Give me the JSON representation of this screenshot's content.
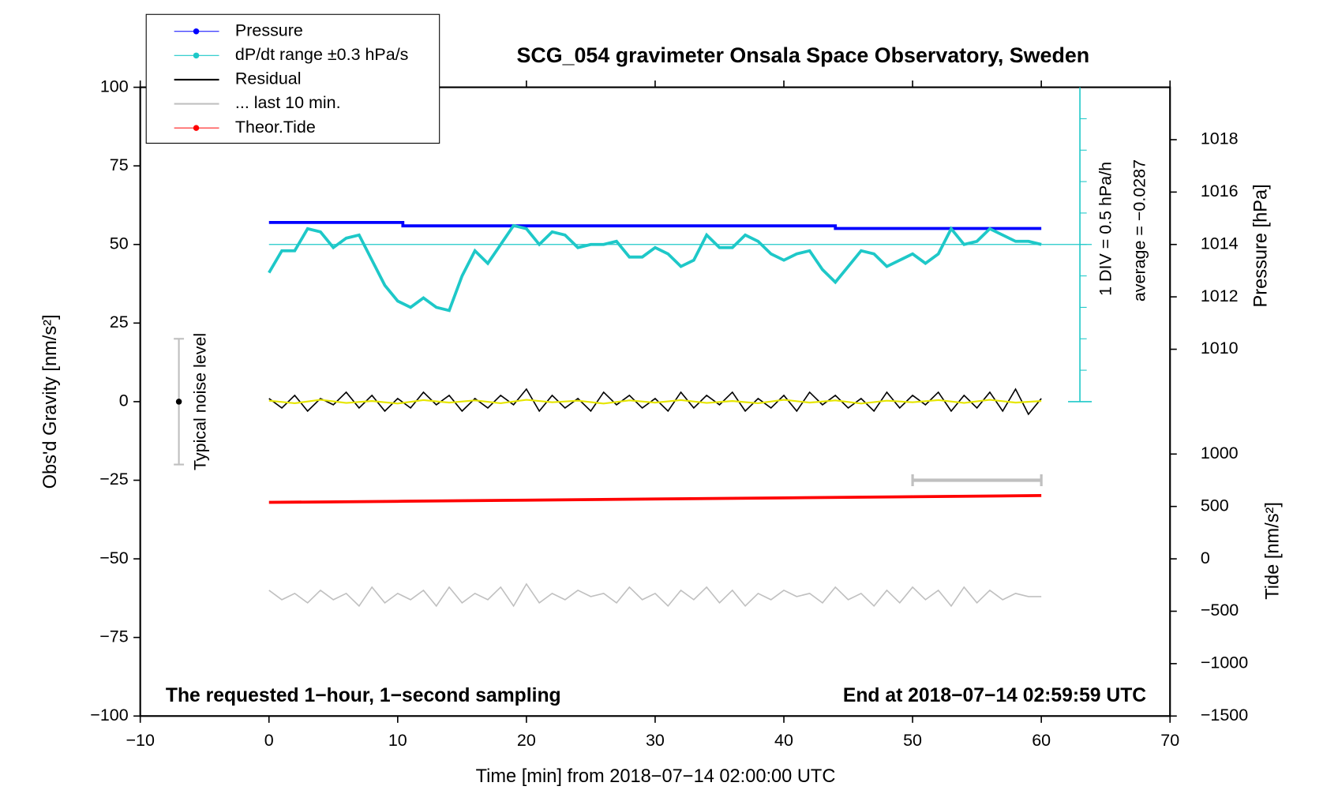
{
  "chart_data": {
    "type": "line",
    "title": "SCG_054 gravimeter Onsala Space Observatory, Sweden",
    "x_label": "Time [min] from 2018−07−14 02:00:00 UTC",
    "y_label": "Obs'd Gravity [nm/s²]",
    "y2_label": "Pressure [hPa]",
    "y3_label": "Tide [nm/s²]",
    "annotations": [
      "The requested 1−hour, 1−second sampling",
      "End at 2018−07−14 02:59:59 UTC",
      "Typical noise level",
      "1 DIV = 0.5 hPa/h",
      "average = −0.0287"
    ],
    "xlim": [
      -10,
      70
    ],
    "xticks": [
      {
        "value": -10,
        "label": "−10"
      },
      0,
      10,
      20,
      30,
      40,
      50,
      60,
      70
    ],
    "ylim": [
      -100,
      100
    ],
    "yticks": [
      {
        "value": -100,
        "label": "−100"
      },
      {
        "value": -75,
        "label": "−75"
      },
      {
        "value": -50,
        "label": "−50"
      },
      {
        "value": -25,
        "label": "−25"
      },
      0,
      25,
      50,
      75,
      100
    ],
    "y2lim": [
      996,
      1020
    ],
    "y2ticks": [
      1010,
      1012,
      1014,
      1016,
      1018
    ],
    "y3lim": [
      -1500,
      4500
    ],
    "y3ticks": [
      {
        "value": -1500,
        "label": "−1500"
      },
      {
        "value": -1000,
        "label": "−1000"
      },
      {
        "value": -500,
        "label": "−500"
      },
      0,
      500,
      1000
    ],
    "series": [
      {
        "name": "Pressure",
        "color": "#0000ff",
        "axis": "y2",
        "marker": true,
        "x": [
          0,
          10.4,
          10.4,
          44,
          44,
          60
        ],
        "values": [
          1014.84,
          1014.84,
          1014.71,
          1014.71,
          1014.61,
          1014.61
        ]
      },
      {
        "name": "dP/dt range ±0.3 hPa/s",
        "color": "#1ec8c8",
        "marker": true,
        "x": [
          0,
          1,
          2,
          3,
          4,
          5,
          6,
          7,
          8,
          9,
          10,
          11,
          12,
          13,
          14,
          15,
          16,
          17,
          18,
          19,
          20,
          21,
          22,
          23,
          24,
          25,
          26,
          27,
          28,
          29,
          30,
          31,
          32,
          33,
          34,
          35,
          36,
          37,
          38,
          39,
          40,
          41,
          42,
          43,
          44,
          45,
          46,
          47,
          48,
          49,
          50,
          51,
          52,
          53,
          54,
          55,
          56,
          57,
          58,
          59,
          60
        ],
        "values": [
          41,
          48,
          48,
          55,
          54,
          49,
          52,
          53,
          45,
          37,
          32,
          30,
          33,
          30,
          29,
          40,
          48,
          44,
          50,
          56,
          55,
          50,
          54,
          53,
          49,
          50,
          50,
          51,
          46,
          46,
          49,
          47,
          43,
          45,
          53,
          49,
          49,
          53,
          51,
          47,
          45,
          47,
          48,
          42,
          38,
          43,
          48,
          47,
          43,
          45,
          47,
          44,
          47,
          55,
          50,
          51,
          55,
          53,
          51,
          51,
          50
        ]
      },
      {
        "name": "Residual",
        "color": "#000000",
        "x": [
          0,
          1,
          2,
          3,
          4,
          5,
          6,
          7,
          8,
          9,
          10,
          11,
          12,
          13,
          14,
          15,
          16,
          17,
          18,
          19,
          20,
          21,
          22,
          23,
          24,
          25,
          26,
          27,
          28,
          29,
          30,
          31,
          32,
          33,
          34,
          35,
          36,
          37,
          38,
          39,
          40,
          41,
          42,
          43,
          44,
          45,
          46,
          47,
          48,
          49,
          50,
          51,
          52,
          53,
          54,
          55,
          56,
          57,
          58,
          59,
          60
        ],
        "values": [
          1,
          -2,
          2,
          -3,
          1,
          -1,
          3,
          -2,
          2,
          -3,
          1,
          -2,
          3,
          -1,
          2,
          -3,
          1,
          -2,
          2,
          -1,
          4,
          -3,
          2,
          -2,
          1,
          -3,
          3,
          -1,
          2,
          -2,
          1,
          -3,
          3,
          -2,
          2,
          -1,
          3,
          -3,
          1,
          -2,
          2,
          -3,
          3,
          -1,
          2,
          -2,
          1,
          -3,
          3,
          -2,
          2,
          -1,
          3,
          -3,
          2,
          -2,
          3,
          -3,
          4,
          -4,
          1
        ]
      },
      {
        "name": "... last 10 min.",
        "color": "#c0c0c0",
        "x": [
          0,
          1,
          2,
          3,
          4,
          5,
          6,
          7,
          8,
          9,
          10,
          11,
          12,
          13,
          14,
          15,
          16,
          17,
          18,
          19,
          20,
          21,
          22,
          23,
          24,
          25,
          26,
          27,
          28,
          29,
          30,
          31,
          32,
          33,
          34,
          35,
          36,
          37,
          38,
          39,
          40,
          41,
          42,
          43,
          44,
          45,
          46,
          47,
          48,
          49,
          50,
          51,
          52,
          53,
          54,
          55,
          56,
          57,
          58,
          59,
          60
        ],
        "values": [
          -60,
          -63,
          -61,
          -64,
          -60,
          -63,
          -61,
          -65,
          -59,
          -64,
          -61,
          -63,
          -60,
          -65,
          -59,
          -64,
          -61,
          -63,
          -59,
          -65,
          -58,
          -64,
          -61,
          -63,
          -60,
          -62,
          -61,
          -64,
          -59,
          -63,
          -61,
          -65,
          -60,
          -63,
          -59,
          -64,
          -60,
          -65,
          -61,
          -63,
          -60,
          -62,
          -61,
          -64,
          -59,
          -63,
          -61,
          -65,
          -60,
          -64,
          -59,
          -63,
          -60,
          -65,
          -59,
          -64,
          -60,
          -63,
          -61,
          -62,
          -62
        ]
      },
      {
        "name": "Theor.Tide",
        "color": "#ff0000",
        "axis": "y3",
        "marker": true,
        "x": [
          0,
          10,
          20,
          30,
          40,
          50,
          60
        ],
        "values": [
          539,
          549,
          560,
          571,
          582,
          593,
          604
        ]
      },
      {
        "color": "#e6e600",
        "x": [
          0,
          2,
          4,
          6,
          8,
          10,
          12,
          14,
          16,
          18,
          20,
          22,
          24,
          26,
          28,
          30,
          32,
          34,
          36,
          38,
          40,
          42,
          44,
          46,
          48,
          50,
          52,
          54,
          56,
          58,
          60
        ],
        "values": [
          0.3,
          -0.5,
          0.6,
          -0.4,
          0.2,
          -0.6,
          0.5,
          -0.3,
          0.4,
          -0.5,
          0.6,
          -0.2,
          0.3,
          -0.6,
          0.4,
          -0.3,
          0.5,
          -0.4,
          0.2,
          -0.5,
          0.6,
          -0.3,
          0.4,
          -0.6,
          0.3,
          -0.2,
          0.5,
          -0.4,
          0.6,
          -0.3,
          0.2
        ]
      }
    ],
    "noise_level": {
      "x": -7,
      "value": 0,
      "range": [
        -20,
        20
      ]
    },
    "window_bar": {
      "x": [
        50,
        60
      ],
      "y": -25
    },
    "dpdt_scale": {
      "x": 63,
      "range": [
        0,
        100
      ],
      "center": 50
    }
  }
}
